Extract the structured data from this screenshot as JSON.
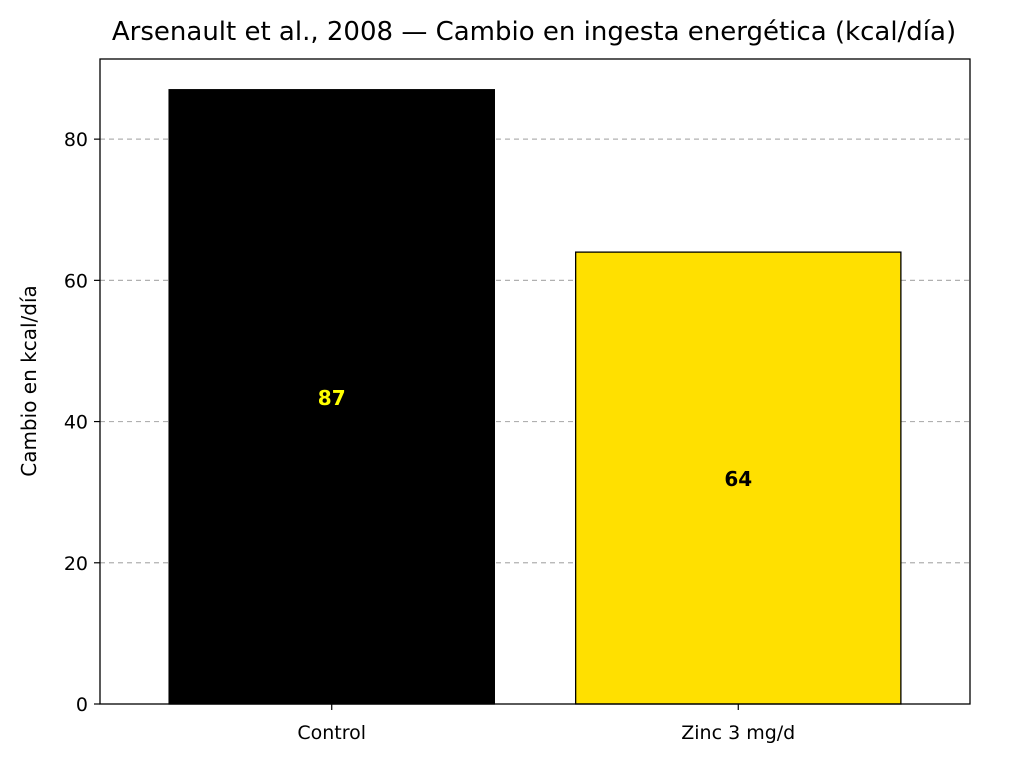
{
  "chart_data": {
    "type": "bar",
    "title": "Arsenault et al., 2008 — Cambio en ingesta energética (kcal/día)",
    "xlabel": "",
    "ylabel": "Cambio en kcal/día",
    "categories": [
      "Control",
      "Zinc 3 mg/d"
    ],
    "values": [
      87,
      64
    ],
    "value_labels": [
      "87",
      "64"
    ],
    "bar_colors": [
      "#000000",
      "#FFE000"
    ],
    "label_colors": [
      "#FFFF00",
      "#000000"
    ],
    "ylim": [
      0,
      91.35
    ],
    "yticks": [
      0,
      20,
      40,
      60,
      80
    ],
    "ytick_labels": [
      "0",
      "20",
      "40",
      "60",
      "80"
    ],
    "grid": "y-dashed",
    "legend": "none"
  }
}
